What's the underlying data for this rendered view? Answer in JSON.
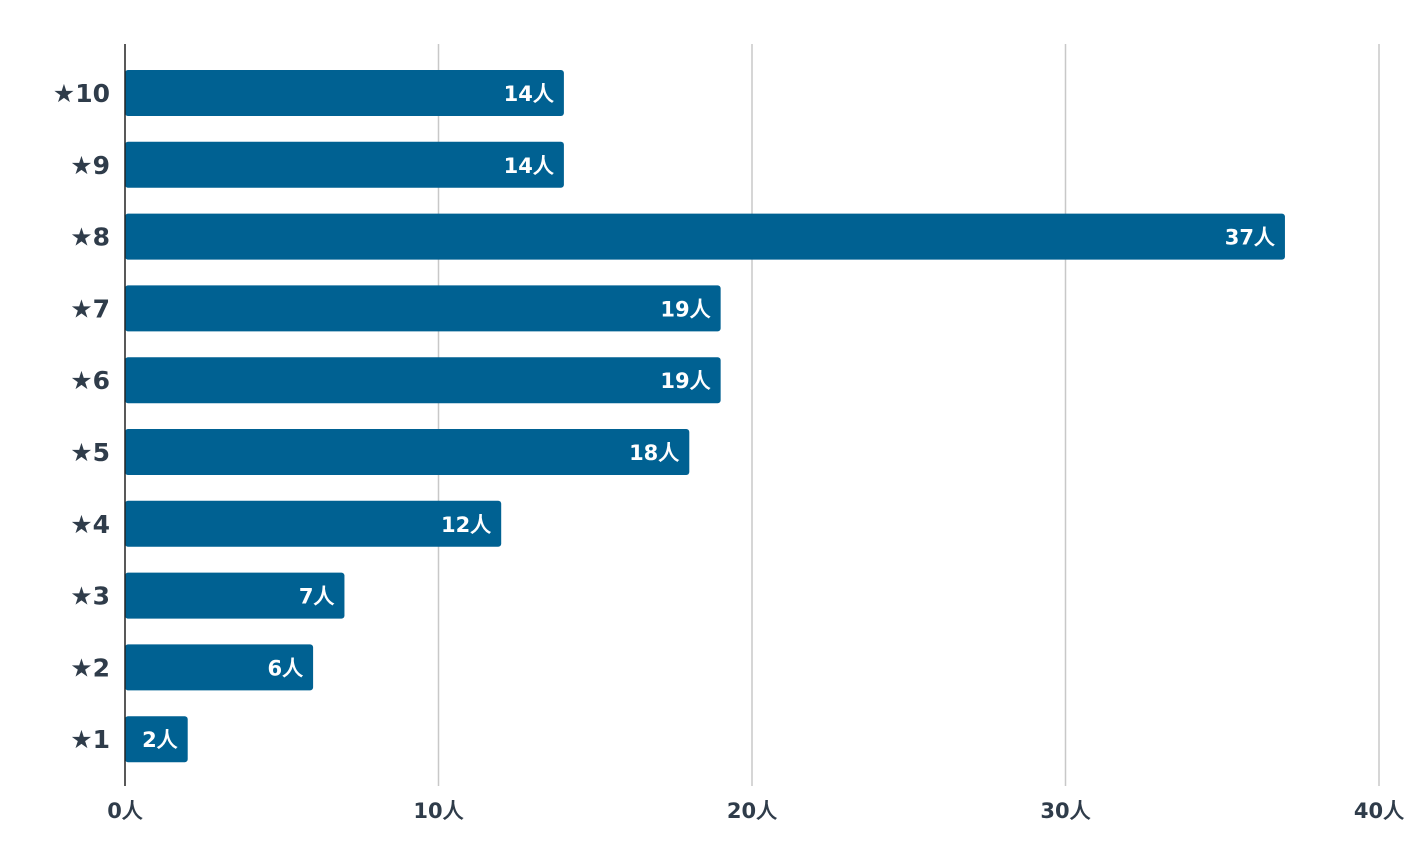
{
  "chart_data": {
    "type": "bar",
    "orientation": "horizontal",
    "categories": [
      "★10",
      "★9",
      "★8",
      "★7",
      "★6",
      "★5",
      "★4",
      "★3",
      "★2",
      "★1"
    ],
    "values": [
      14,
      14,
      37,
      19,
      19,
      18,
      12,
      7,
      6,
      2
    ],
    "data_labels": [
      "14人",
      "14人",
      "37人",
      "19人",
      "19人",
      "18人",
      "12人",
      "7人",
      "6人",
      "2人"
    ],
    "x_ticks": [
      0,
      10,
      20,
      30,
      40
    ],
    "x_tick_labels": [
      "0人",
      "10人",
      "20人",
      "30人",
      "40人"
    ],
    "xlim": [
      0,
      40
    ],
    "grid": true,
    "bar_color": "#006192",
    "title": "",
    "xlabel": "",
    "ylabel": ""
  }
}
